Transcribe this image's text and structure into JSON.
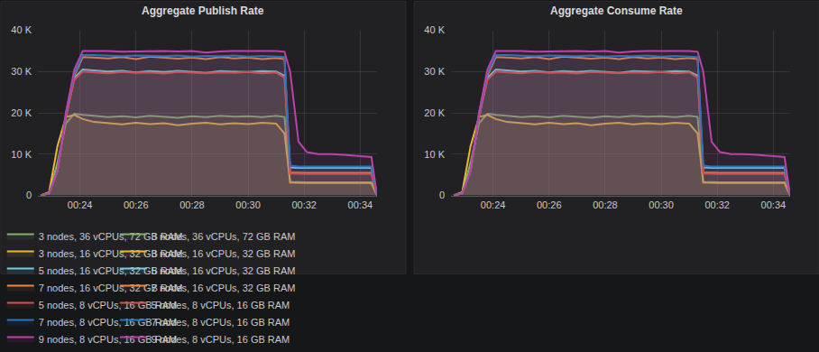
{
  "chart_data": [
    {
      "type": "area",
      "title": "Aggregate Publish Rate",
      "x": [
        22.6,
        22.9,
        23.2,
        23.5,
        23.8,
        24.1,
        24.5,
        25,
        25.5,
        26,
        26.5,
        27,
        27.5,
        28,
        28.5,
        29,
        29.5,
        30,
        30.5,
        31,
        31.3,
        31.5,
        31.8,
        32.1,
        32.5,
        33,
        33.5,
        34,
        34.4,
        34.6
      ],
      "xlim": [
        22.5,
        34.6
      ],
      "xticks": [
        {
          "value": 24,
          "label": "00:24"
        },
        {
          "value": 26,
          "label": "00:26"
        },
        {
          "value": 28,
          "label": "00:28"
        },
        {
          "value": 30,
          "label": "00:30"
        },
        {
          "value": 32,
          "label": "00:32"
        },
        {
          "value": 34,
          "label": "00:34"
        }
      ],
      "ylim": [
        0,
        40000
      ],
      "yticks": [
        0,
        {
          "value": 10000,
          "label": "10 K"
        },
        {
          "value": 20000,
          "label": "20 K"
        },
        {
          "value": 30000,
          "label": "30 K"
        },
        {
          "value": 40000,
          "label": "40 K"
        }
      ],
      "grid": true,
      "legend": "bottom",
      "series": [
        {
          "name": "3 nodes, 36 vCPUs, 72 GB RAM",
          "color": "#7eb26d",
          "values": [
            0,
            500,
            8000,
            17500,
            19800,
            19500,
            19300,
            19000,
            19200,
            18900,
            19300,
            19000,
            18800,
            19200,
            19000,
            19300,
            19100,
            19200,
            19000,
            19300,
            19000,
            3300,
            3200,
            3200,
            3200,
            3200,
            3200,
            3200,
            3200,
            0
          ]
        },
        {
          "name": "3 nodes, 16 vCPUs, 32 GB RAM",
          "color": "#eab839",
          "values": [
            0,
            800,
            12000,
            19000,
            19500,
            18500,
            17800,
            17500,
            17200,
            17600,
            17300,
            17500,
            17000,
            17400,
            17600,
            17200,
            17500,
            17300,
            17600,
            17400,
            15000,
            3100,
            3000,
            3000,
            3000,
            3000,
            3000,
            3000,
            3000,
            0
          ]
        },
        {
          "name": "5 nodes, 16 vCPUs, 32 GB RAM",
          "color": "#6ed0e0",
          "values": [
            0,
            500,
            6000,
            19000,
            28500,
            30500,
            30300,
            30000,
            30200,
            29800,
            30100,
            29900,
            30200,
            30000,
            29700,
            30100,
            30000,
            29900,
            30100,
            30000,
            29000,
            6800,
            6700,
            6700,
            6700,
            6700,
            6700,
            6700,
            6700,
            0
          ]
        },
        {
          "name": "7 nodes, 16 vCPUs, 32 GB RAM",
          "color": "#ef843c",
          "values": [
            0,
            500,
            6000,
            19500,
            29000,
            33500,
            33400,
            33200,
            33500,
            33000,
            33600,
            33300,
            33100,
            33400,
            33000,
            33500,
            33200,
            33400,
            33000,
            33300,
            33000,
            5600,
            5500,
            5500,
            5500,
            5500,
            5500,
            5500,
            5500,
            0
          ]
        },
        {
          "name": "5 nodes, 8 vCPUs, 16 GB RAM",
          "color": "#e24d42",
          "values": [
            0,
            500,
            6000,
            19000,
            28000,
            30000,
            29800,
            29600,
            29900,
            29700,
            29800,
            29500,
            29900,
            29700,
            29600,
            29800,
            29700,
            29900,
            29600,
            29800,
            28500,
            5300,
            5200,
            5200,
            5200,
            5200,
            5200,
            5200,
            5200,
            0
          ]
        },
        {
          "name": "7 nodes, 8 vCPUs, 16 GB RAM",
          "color": "#1f78c1",
          "values": [
            0,
            500,
            6000,
            20000,
            29500,
            34000,
            34000,
            33800,
            33700,
            33900,
            33800,
            33700,
            33900,
            33600,
            33800,
            33700,
            33900,
            33600,
            33800,
            33700,
            33500,
            7200,
            7000,
            7000,
            7000,
            7000,
            7000,
            7000,
            7000,
            0
          ]
        },
        {
          "name": "9 nodes, 8 vCPUs, 16 GB RAM",
          "color": "#ba43a9",
          "values": [
            0,
            500,
            6000,
            20000,
            30500,
            35000,
            35000,
            35000,
            34800,
            34900,
            34900,
            35000,
            34900,
            35000,
            34600,
            34900,
            35000,
            35000,
            34900,
            35000,
            34800,
            30000,
            13000,
            10500,
            10000,
            10000,
            9800,
            9500,
            9300,
            0
          ]
        }
      ]
    },
    {
      "type": "area",
      "title": "Aggregate Consume Rate",
      "x": [
        22.6,
        22.9,
        23.2,
        23.5,
        23.8,
        24.1,
        24.5,
        25,
        25.5,
        26,
        26.5,
        27,
        27.5,
        28,
        28.5,
        29,
        29.5,
        30,
        30.5,
        31,
        31.3,
        31.5,
        31.8,
        32.1,
        32.5,
        33,
        33.5,
        34,
        34.4,
        34.6
      ],
      "xlim": [
        22.5,
        34.6
      ],
      "xticks": [
        {
          "value": 24,
          "label": "00:24"
        },
        {
          "value": 26,
          "label": "00:26"
        },
        {
          "value": 28,
          "label": "00:28"
        },
        {
          "value": 30,
          "label": "00:30"
        },
        {
          "value": 32,
          "label": "00:32"
        },
        {
          "value": 34,
          "label": "00:34"
        }
      ],
      "ylim": [
        0,
        40000
      ],
      "yticks": [
        0,
        {
          "value": 10000,
          "label": "10 K"
        },
        {
          "value": 20000,
          "label": "20 K"
        },
        {
          "value": 30000,
          "label": "30 K"
        },
        {
          "value": 40000,
          "label": "40 K"
        }
      ],
      "grid": true,
      "legend": "bottom",
      "series": [
        {
          "name": "3 nodes, 36 vCPUs, 72 GB RAM",
          "color": "#7eb26d",
          "values": [
            0,
            500,
            8000,
            17500,
            19800,
            19500,
            19300,
            19000,
            19200,
            18900,
            19300,
            19000,
            18800,
            19200,
            19000,
            19300,
            19100,
            19200,
            19000,
            19300,
            19000,
            3300,
            3200,
            3200,
            3200,
            3200,
            3200,
            3200,
            3200,
            0
          ]
        },
        {
          "name": "3 nodes, 16 vCPUs, 32 GB RAM",
          "color": "#eab839",
          "values": [
            0,
            800,
            12000,
            19000,
            19500,
            18500,
            17800,
            17500,
            17200,
            17600,
            17300,
            17500,
            17000,
            17400,
            17600,
            17200,
            17500,
            17300,
            17600,
            17400,
            15000,
            3100,
            3000,
            3000,
            3000,
            3000,
            3000,
            3000,
            3000,
            0
          ]
        },
        {
          "name": "5 nodes, 16 vCPUs, 32 GB RAM",
          "color": "#6ed0e0",
          "values": [
            0,
            500,
            6000,
            19000,
            28500,
            30500,
            30300,
            30000,
            30200,
            29800,
            30100,
            29900,
            30200,
            30000,
            29700,
            30100,
            30000,
            29900,
            30100,
            30000,
            29000,
            6800,
            6700,
            6700,
            6700,
            6700,
            6700,
            6700,
            6700,
            0
          ]
        },
        {
          "name": "7 nodes, 16 vCPUs, 32 GB RAM",
          "color": "#ef843c",
          "values": [
            0,
            500,
            6000,
            19500,
            29000,
            33500,
            33400,
            33200,
            33500,
            33000,
            33600,
            33300,
            33100,
            33400,
            33000,
            33500,
            33200,
            33400,
            33000,
            33300,
            33000,
            5600,
            5500,
            5500,
            5500,
            5500,
            5500,
            5500,
            5500,
            0
          ]
        },
        {
          "name": "5 nodes, 8 vCPUs, 16 GB RAM",
          "color": "#e24d42",
          "values": [
            0,
            500,
            6000,
            19000,
            28000,
            30000,
            29800,
            29600,
            29900,
            29700,
            29800,
            29500,
            29900,
            29700,
            29600,
            29800,
            29700,
            29900,
            29600,
            29800,
            28500,
            5300,
            5200,
            5200,
            5200,
            5200,
            5200,
            5200,
            5200,
            0
          ]
        },
        {
          "name": "7 nodes, 8 vCPUs, 16 GB RAM",
          "color": "#1f78c1",
          "values": [
            0,
            500,
            6000,
            20000,
            29500,
            34000,
            34000,
            33800,
            33700,
            33900,
            33800,
            33700,
            33900,
            33600,
            33800,
            33700,
            33900,
            33600,
            33800,
            33700,
            33500,
            7200,
            7000,
            7000,
            7000,
            7000,
            7000,
            7000,
            7000,
            0
          ]
        },
        {
          "name": "9 nodes, 8 vCPUs, 16 GB RAM",
          "color": "#ba43a9",
          "values": [
            0,
            500,
            6000,
            20000,
            30500,
            35000,
            35000,
            35000,
            34800,
            34900,
            34900,
            35000,
            34900,
            35000,
            34600,
            34900,
            35000,
            35000,
            34900,
            35000,
            34800,
            30000,
            13000,
            10500,
            10000,
            10000,
            9800,
            9500,
            9300,
            0
          ]
        }
      ]
    }
  ]
}
